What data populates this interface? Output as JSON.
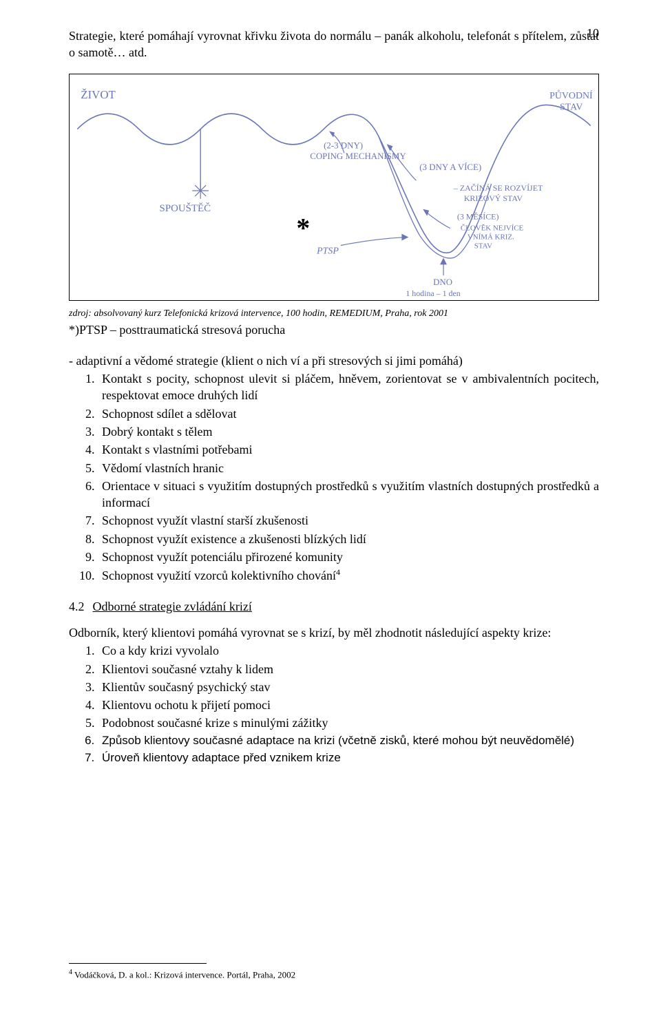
{
  "page_number": "10",
  "intro_text": "Strategie, které pomáhají vyrovnat křivku života do normálu – panák alkoholu, telefonát s přítelem, zůstat o samotě… atd.",
  "diagram": {
    "border_color": "#000000",
    "ink_color": "#6b76b8",
    "labels": {
      "zivot": "ŽIVOT",
      "spoustec": "SPOUŠTĚČ",
      "ptsp": "PTSP",
      "coping_days": "(2-3 DNY)",
      "coping_mech": "COPING MECHANISMY",
      "three_days": "(3 DNY A VÍCE)",
      "zacina": "– ZAČÍNÁ SE ROZVÍJET",
      "krizovy": "KRIZOVÝ STAV",
      "three_months": "(3 MĚSÍCE)",
      "clovek": "ČLOVĚK NEJVÍCE",
      "vnima": "VNÍMÁ KRIZ.",
      "stav": "STAV",
      "dno": "DNO",
      "hodina": "1 hodina – 1 den",
      "puvodni": "PŮVODNÍ",
      "stav2": "STAV",
      "star": "*"
    }
  },
  "caption": "zdroj: absolvovaný kurz Telefonická krizová intervence, 100 hodin, REMEDIUM, Praha, rok 2001",
  "ptsp_line": "*)PTSP – posttraumatická stresová porucha",
  "adapt_intro": "- adaptivní a vědomé strategie (klient o nich ví a při stresových si jimi pomáhá)",
  "adapt_list": [
    "Kontakt s pocity, schopnost ulevit si pláčem, hněvem, zorientovat se v ambivalentních pocitech, respektovat emoce druhých lidí",
    "Schopnost sdílet a sdělovat",
    "Dobrý kontakt s tělem",
    "Kontakt s vlastními potřebami",
    "Vědomí vlastních hranic",
    "Orientace v situaci s využitím dostupných prostředků s využitím vlastních dostupných prostředků a informací",
    "Schopnost využít vlastní starší zkušenosti",
    "Schopnost využít existence a zkušenosti blízkých lidí",
    "Schopnost využít potenciálu přirozené komunity",
    "Schopnost využití vzorců kolektivního chování"
  ],
  "footnote_marker": "4",
  "section": {
    "num": "4.2",
    "title": "Odborné strategie zvládání krizí"
  },
  "odbornik_text": "Odborník, který klientovi pomáhá vyrovnat se s krizí, by měl zhodnotit následující aspekty krize:",
  "krize_list": [
    "Co a kdy krizi vyvolalo",
    "Klientovi současné vztahy k lidem",
    "Klientův současný psychický stav",
    "Klientovu ochotu k přijetí pomoci",
    "Podobnost současné krize s minulými zážitky",
    "Způsob klientovy současné adaptace na krizi (včetně zisků, které mohou být neuvědomělé)",
    "Úroveň klientovy adaptace před vznikem krize"
  ],
  "krize_arial_indices": [
    5,
    6
  ],
  "footnote_text": "Vodáčková, D. a kol.: Krizová intervence. Portál, Praha, 2002"
}
